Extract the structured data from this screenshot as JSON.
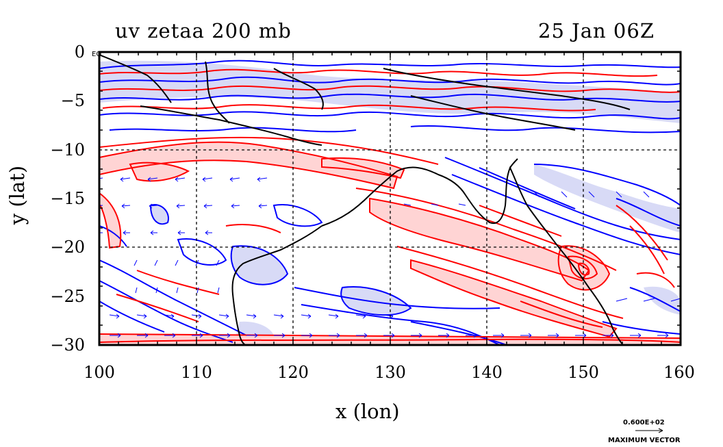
{
  "title_left": "uv zetaa 200 mb",
  "title_right": "25 Jan 06Z",
  "equator_label": "EQ",
  "xlabel": "x (lon)",
  "ylabel": "y (lat)",
  "legend": {
    "value": "0.600E+02",
    "label": "MAXIMUM VECTOR"
  },
  "colors": {
    "positive": "#ff0000",
    "negative": "#0000ff",
    "positive_fill": "#ffd4d4",
    "negative_fill": "#d8daf6",
    "coast": "#000000"
  },
  "chart_data": {
    "type": "map",
    "field": "uv zetaa 200 mb",
    "valid_time": "25 Jan 06Z",
    "xlim": [
      100,
      160
    ],
    "ylim": [
      -30,
      0
    ],
    "xticks": [
      100,
      110,
      120,
      130,
      140,
      150,
      160
    ],
    "yticks": [
      0,
      -5,
      -10,
      -15,
      -20,
      -25,
      -30
    ],
    "xtick_labels": [
      "100",
      "110",
      "120",
      "130",
      "140",
      "150",
      "160"
    ],
    "ytick_labels": [
      "0",
      "−5",
      "−10",
      "−15",
      "−20",
      "−25",
      "−30"
    ],
    "grid": true,
    "max_vector": 60
  }
}
